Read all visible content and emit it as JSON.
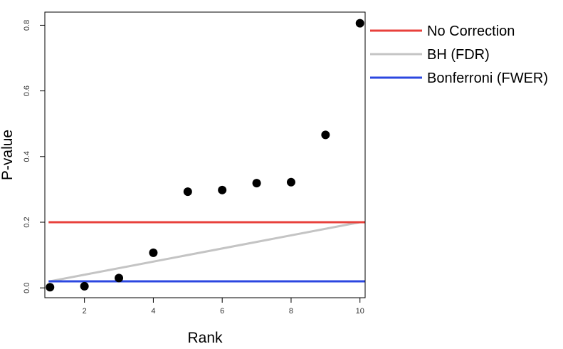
{
  "chart_data": {
    "type": "scatter",
    "title": "",
    "xlabel": "Rank",
    "ylabel": "P-value",
    "xlim": [
      0.85,
      10.15
    ],
    "ylim": [
      -0.03,
      0.84
    ],
    "xticks": [
      2,
      4,
      6,
      8,
      10
    ],
    "yticks": [
      0.0,
      0.2,
      0.4,
      0.6,
      0.8
    ],
    "ytick_labels": [
      "0.0",
      "0.2",
      "0.4",
      "0.6",
      "0.8"
    ],
    "grid": false,
    "points": {
      "x": [
        1,
        2,
        3,
        4,
        5,
        6,
        7,
        8,
        9,
        10
      ],
      "y": [
        0.002,
        0.005,
        0.03,
        0.107,
        0.293,
        0.298,
        0.319,
        0.322,
        0.466,
        0.806
      ]
    },
    "lines": [
      {
        "name": "No Correction",
        "color": "#e8413c",
        "kind": "hline",
        "y": 0.2
      },
      {
        "name": "BH (FDR)",
        "color": "#c4c4c4",
        "kind": "segment",
        "x": [
          1,
          10
        ],
        "y": [
          0.02,
          0.2
        ]
      },
      {
        "name": "Bonferroni (FWER)",
        "color": "#2b47e0",
        "kind": "hline",
        "y": 0.02
      }
    ],
    "legend": {
      "placement": "right-top",
      "entries": [
        "No Correction",
        "BH (FDR)",
        "Bonferroni (FWER)"
      ]
    }
  }
}
